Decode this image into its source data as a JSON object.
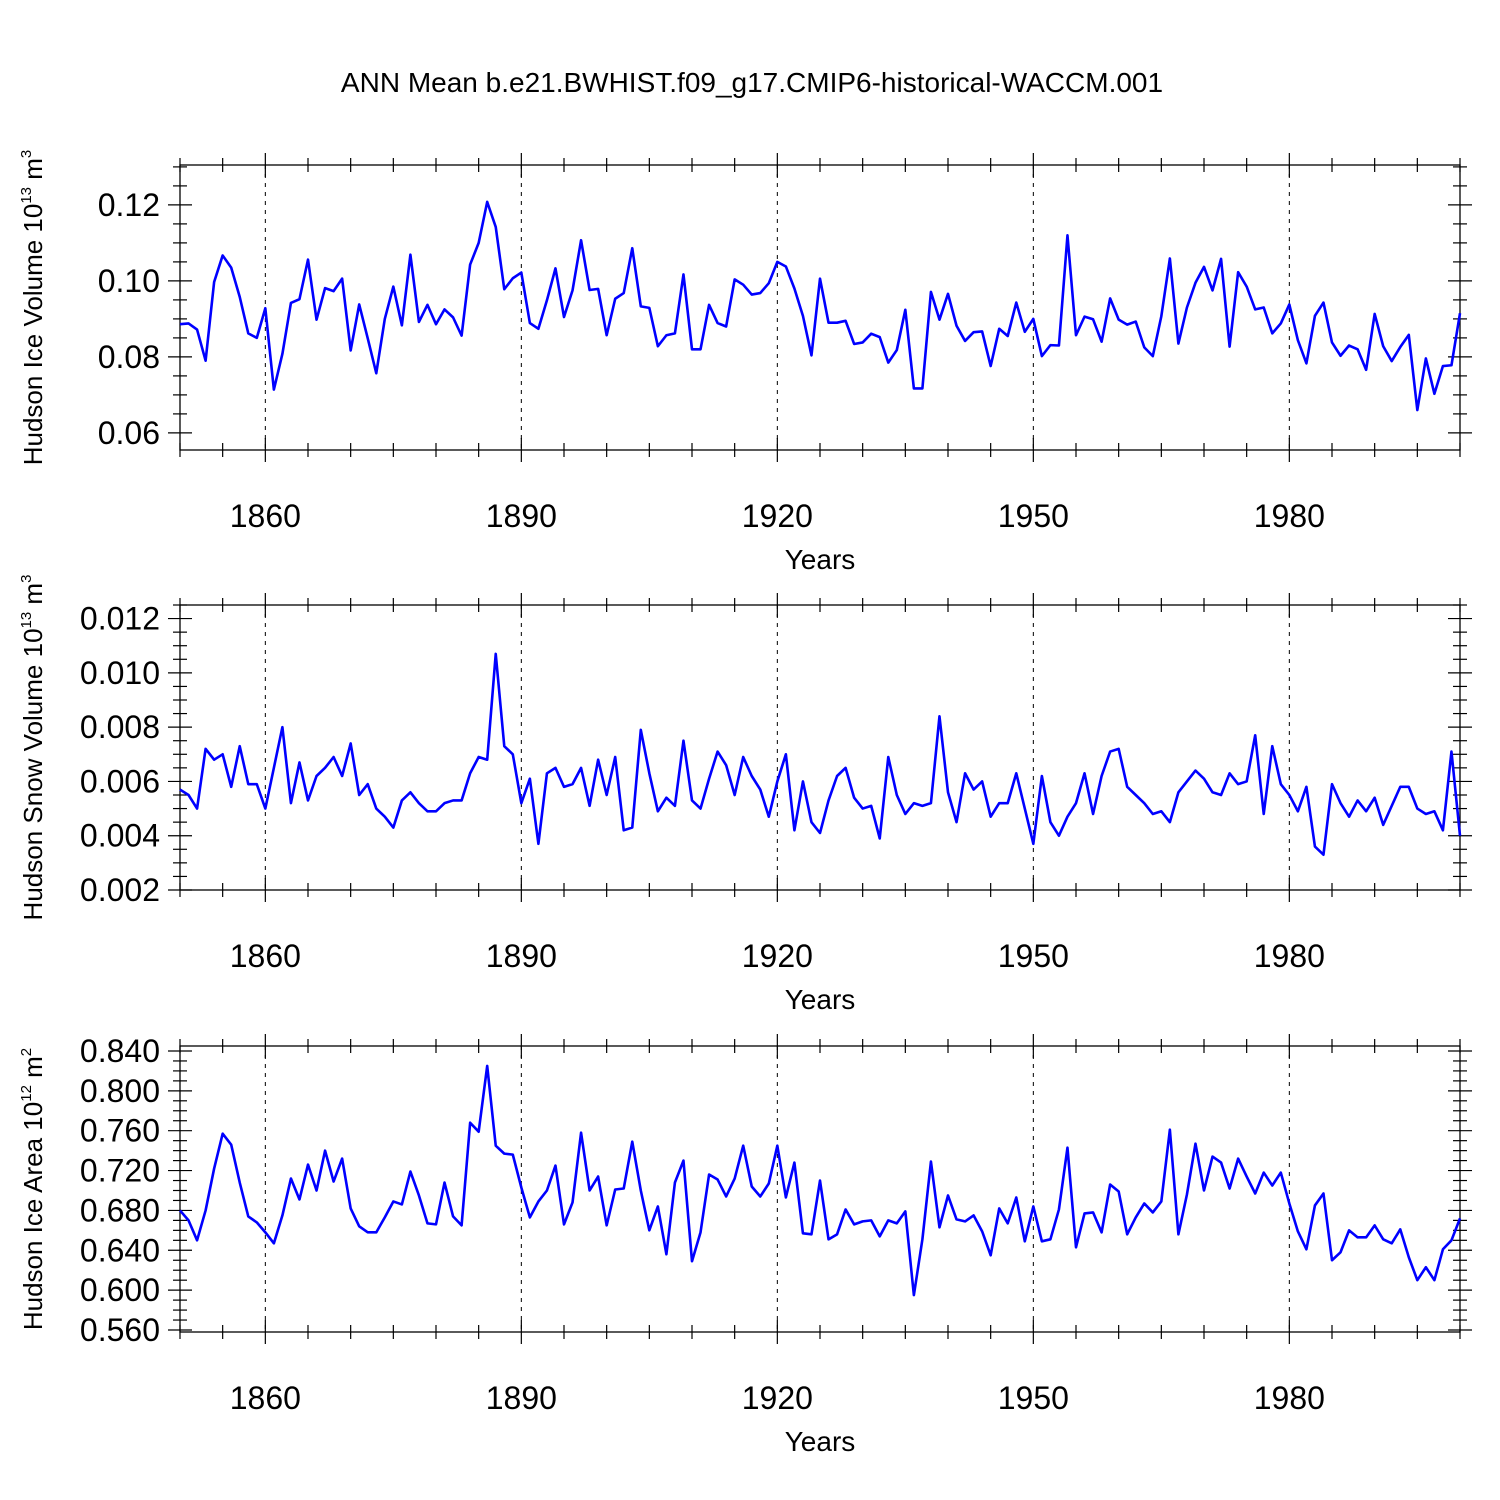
{
  "title": "ANN Mean b.e21.BWHIST.f09_g17.CMIP6-historical-WACCM.001",
  "line_color": "#0000ff",
  "chart_data": [
    {
      "type": "line",
      "ylabel": "Hudson Ice Volume 10",
      "ylabel_exp": "13",
      "ylabel_unit": " m",
      "ylabel_unit_exp": "3",
      "xlabel": "Years",
      "xlim": [
        1850,
        2000
      ],
      "ylim": [
        0.0555,
        0.1305
      ],
      "yticks": [
        0.06,
        0.08,
        0.1,
        0.12
      ],
      "ytick_labels": [
        "0.06",
        "0.08",
        "0.10",
        "0.12"
      ],
      "xticks": [
        1860,
        1890,
        1920,
        1950,
        1980
      ],
      "xtick_labels": [
        "1860",
        "1890",
        "1920",
        "1950",
        "1980"
      ],
      "grid": "dashed vertical lines at major x ticks",
      "series": [
        {
          "x_start": 1850,
          "values": [
            0.0886,
            0.0888,
            0.0872,
            0.079,
            0.0997,
            0.1067,
            0.1035,
            0.0958,
            0.0862,
            0.085,
            0.0928,
            0.0714,
            0.0808,
            0.0942,
            0.0952,
            0.1056,
            0.0898,
            0.0981,
            0.0973,
            0.1006,
            0.0817,
            0.0938,
            0.0849,
            0.0757,
            0.09,
            0.0985,
            0.0883,
            0.1069,
            0.0892,
            0.0937,
            0.0886,
            0.0925,
            0.0904,
            0.0856,
            0.1043,
            0.11,
            0.1208,
            0.1142,
            0.0978,
            0.1007,
            0.1022,
            0.0889,
            0.0874,
            0.0949,
            0.1033,
            0.0905,
            0.0975,
            0.1107,
            0.0976,
            0.0979,
            0.0857,
            0.0953,
            0.0968,
            0.1086,
            0.0933,
            0.0929,
            0.0828,
            0.0857,
            0.0862,
            0.1017,
            0.082,
            0.082,
            0.0937,
            0.0889,
            0.088,
            0.1004,
            0.099,
            0.0964,
            0.0968,
            0.0994,
            0.105,
            0.1038,
            0.098,
            0.0908,
            0.0804,
            0.1006,
            0.089,
            0.089,
            0.0895,
            0.0834,
            0.0838,
            0.0861,
            0.0852,
            0.0785,
            0.0818,
            0.0924,
            0.0717,
            0.0717,
            0.0971,
            0.0898,
            0.0966,
            0.0882,
            0.0842,
            0.0865,
            0.0867,
            0.0776,
            0.0874,
            0.0855,
            0.0943,
            0.0866,
            0.09,
            0.0802,
            0.0831,
            0.083,
            0.112,
            0.0857,
            0.0906,
            0.0899,
            0.084,
            0.0954,
            0.0898,
            0.0885,
            0.0893,
            0.0825,
            0.0802,
            0.0907,
            0.1059,
            0.0835,
            0.093,
            0.0995,
            0.1037,
            0.0975,
            0.1058,
            0.0827,
            0.1023,
            0.0985,
            0.0925,
            0.093,
            0.0862,
            0.0888,
            0.0938,
            0.0844,
            0.0783,
            0.0908,
            0.0943,
            0.0838,
            0.0803,
            0.083,
            0.082,
            0.0766,
            0.0913,
            0.0828,
            0.0789,
            0.0826,
            0.0858,
            0.066,
            0.0796,
            0.0703,
            0.0776,
            0.0778,
            0.0915
          ]
        }
      ]
    },
    {
      "type": "line",
      "ylabel": "Hudson Snow Volume 10",
      "ylabel_exp": "13",
      "ylabel_unit": " m",
      "ylabel_unit_exp": "3",
      "xlabel": "Years",
      "xlim": [
        1850,
        2000
      ],
      "ylim": [
        0.002,
        0.0125
      ],
      "yticks": [
        0.002,
        0.004,
        0.006,
        0.008,
        0.01,
        0.012
      ],
      "ytick_labels": [
        "0.002",
        "0.004",
        "0.006",
        "0.008",
        "0.010",
        "0.012"
      ],
      "xticks": [
        1860,
        1890,
        1920,
        1950,
        1980
      ],
      "xtick_labels": [
        "1860",
        "1890",
        "1920",
        "1950",
        "1980"
      ],
      "grid": "dashed vertical lines at major x ticks",
      "series": [
        {
          "x_start": 1850,
          "values": [
            0.0057,
            0.0055,
            0.005,
            0.0072,
            0.0068,
            0.007,
            0.0058,
            0.0073,
            0.0059,
            0.0059,
            0.005,
            0.0065,
            0.008,
            0.0052,
            0.0067,
            0.0053,
            0.0062,
            0.0065,
            0.0069,
            0.0062,
            0.0074,
            0.0055,
            0.0059,
            0.005,
            0.0047,
            0.0043,
            0.0053,
            0.0056,
            0.0052,
            0.0049,
            0.0049,
            0.0052,
            0.0053,
            0.0053,
            0.0063,
            0.0069,
            0.0068,
            0.0107,
            0.0073,
            0.007,
            0.0052,
            0.0061,
            0.0037,
            0.0063,
            0.0065,
            0.0058,
            0.0059,
            0.0065,
            0.0051,
            0.0068,
            0.0055,
            0.0069,
            0.0042,
            0.0043,
            0.0079,
            0.0063,
            0.0049,
            0.0054,
            0.0051,
            0.0075,
            0.0053,
            0.005,
            0.0061,
            0.0071,
            0.0066,
            0.0055,
            0.0069,
            0.0062,
            0.0057,
            0.0047,
            0.006,
            0.007,
            0.0042,
            0.006,
            0.0045,
            0.0041,
            0.0053,
            0.0062,
            0.0065,
            0.0054,
            0.005,
            0.0051,
            0.0039,
            0.0069,
            0.0055,
            0.0048,
            0.0052,
            0.0051,
            0.0052,
            0.0084,
            0.0056,
            0.0045,
            0.0063,
            0.0057,
            0.006,
            0.0047,
            0.0052,
            0.0052,
            0.0063,
            0.005,
            0.0037,
            0.0062,
            0.0045,
            0.004,
            0.0047,
            0.0052,
            0.0063,
            0.0048,
            0.0062,
            0.0071,
            0.0072,
            0.0058,
            0.0055,
            0.0052,
            0.0048,
            0.0049,
            0.0045,
            0.0056,
            0.006,
            0.0064,
            0.0061,
            0.0056,
            0.0055,
            0.0063,
            0.0059,
            0.006,
            0.0077,
            0.0048,
            0.0073,
            0.0059,
            0.0055,
            0.0049,
            0.0058,
            0.0036,
            0.0033,
            0.0059,
            0.0052,
            0.0047,
            0.0053,
            0.0049,
            0.0054,
            0.0044,
            0.0051,
            0.0058,
            0.0058,
            0.005,
            0.0048,
            0.0049,
            0.0042,
            0.0071,
            0.004
          ]
        }
      ]
    },
    {
      "type": "line",
      "ylabel": "Hudson Ice Area 10",
      "ylabel_exp": "12",
      "ylabel_unit": " m",
      "ylabel_unit_exp": "2",
      "xlabel": "Years",
      "xlim": [
        1850,
        2000
      ],
      "ylim": [
        0.558,
        0.845
      ],
      "yticks": [
        0.56,
        0.6,
        0.64,
        0.68,
        0.72,
        0.76,
        0.8,
        0.84
      ],
      "ytick_labels": [
        "0.560",
        "0.600",
        "0.640",
        "0.680",
        "0.720",
        "0.760",
        "0.800",
        "0.840"
      ],
      "xticks": [
        1860,
        1890,
        1920,
        1950,
        1980
      ],
      "xtick_labels": [
        "1860",
        "1890",
        "1920",
        "1950",
        "1980"
      ],
      "grid": "dashed vertical lines at major x ticks",
      "series": [
        {
          "x_start": 1850,
          "values": [
            0.68,
            0.67,
            0.65,
            0.68,
            0.722,
            0.757,
            0.746,
            0.708,
            0.674,
            0.668,
            0.658,
            0.647,
            0.675,
            0.712,
            0.691,
            0.726,
            0.7,
            0.74,
            0.709,
            0.732,
            0.682,
            0.664,
            0.658,
            0.658,
            0.673,
            0.689,
            0.686,
            0.719,
            0.695,
            0.667,
            0.666,
            0.708,
            0.674,
            0.665,
            0.768,
            0.759,
            0.825,
            0.745,
            0.737,
            0.736,
            0.703,
            0.673,
            0.689,
            0.7,
            0.725,
            0.666,
            0.688,
            0.758,
            0.7,
            0.714,
            0.665,
            0.701,
            0.702,
            0.749,
            0.7,
            0.66,
            0.684,
            0.636,
            0.708,
            0.73,
            0.629,
            0.658,
            0.716,
            0.711,
            0.694,
            0.712,
            0.745,
            0.704,
            0.694,
            0.707,
            0.745,
            0.693,
            0.728,
            0.657,
            0.656,
            0.71,
            0.651,
            0.656,
            0.681,
            0.666,
            0.669,
            0.67,
            0.654,
            0.67,
            0.667,
            0.679,
            0.595,
            0.651,
            0.729,
            0.663,
            0.695,
            0.671,
            0.669,
            0.675,
            0.659,
            0.635,
            0.682,
            0.667,
            0.693,
            0.649,
            0.684,
            0.649,
            0.651,
            0.681,
            0.743,
            0.643,
            0.677,
            0.678,
            0.658,
            0.706,
            0.699,
            0.656,
            0.673,
            0.687,
            0.678,
            0.689,
            0.761,
            0.656,
            0.696,
            0.747,
            0.7,
            0.734,
            0.728,
            0.702,
            0.732,
            0.714,
            0.697,
            0.718,
            0.705,
            0.718,
            0.687,
            0.659,
            0.641,
            0.685,
            0.697,
            0.63,
            0.638,
            0.66,
            0.653,
            0.653,
            0.665,
            0.651,
            0.647,
            0.661,
            0.633,
            0.61,
            0.623,
            0.61,
            0.641,
            0.65,
            0.672
          ]
        }
      ]
    }
  ]
}
